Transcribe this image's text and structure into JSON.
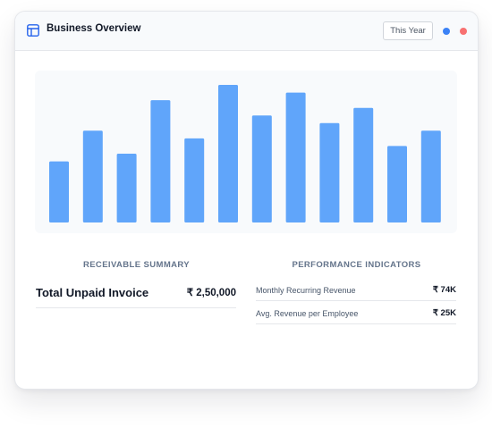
{
  "header": {
    "title": "Business Overview",
    "period_button": "This Year",
    "indicator_colors": [
      "#3b82f6",
      "#f87171"
    ]
  },
  "chart_data": {
    "type": "bar",
    "values": [
      40,
      60,
      45,
      80,
      55,
      90,
      70,
      85,
      65,
      75,
      50,
      60
    ],
    "color": "#60a5fa",
    "grid": false,
    "axes_visible": false
  },
  "receivable": {
    "heading": "RECEIVABLE SUMMARY",
    "label": "Total Unpaid Invoice",
    "value": "₹ 2,50,000"
  },
  "performance": {
    "heading": "PERFORMANCE INDICATORS",
    "items": [
      {
        "label": "Monthly Recurring Revenue",
        "value": "₹ 74K"
      },
      {
        "label": "Avg. Revenue per Employee",
        "value": "₹ 25K"
      }
    ]
  }
}
